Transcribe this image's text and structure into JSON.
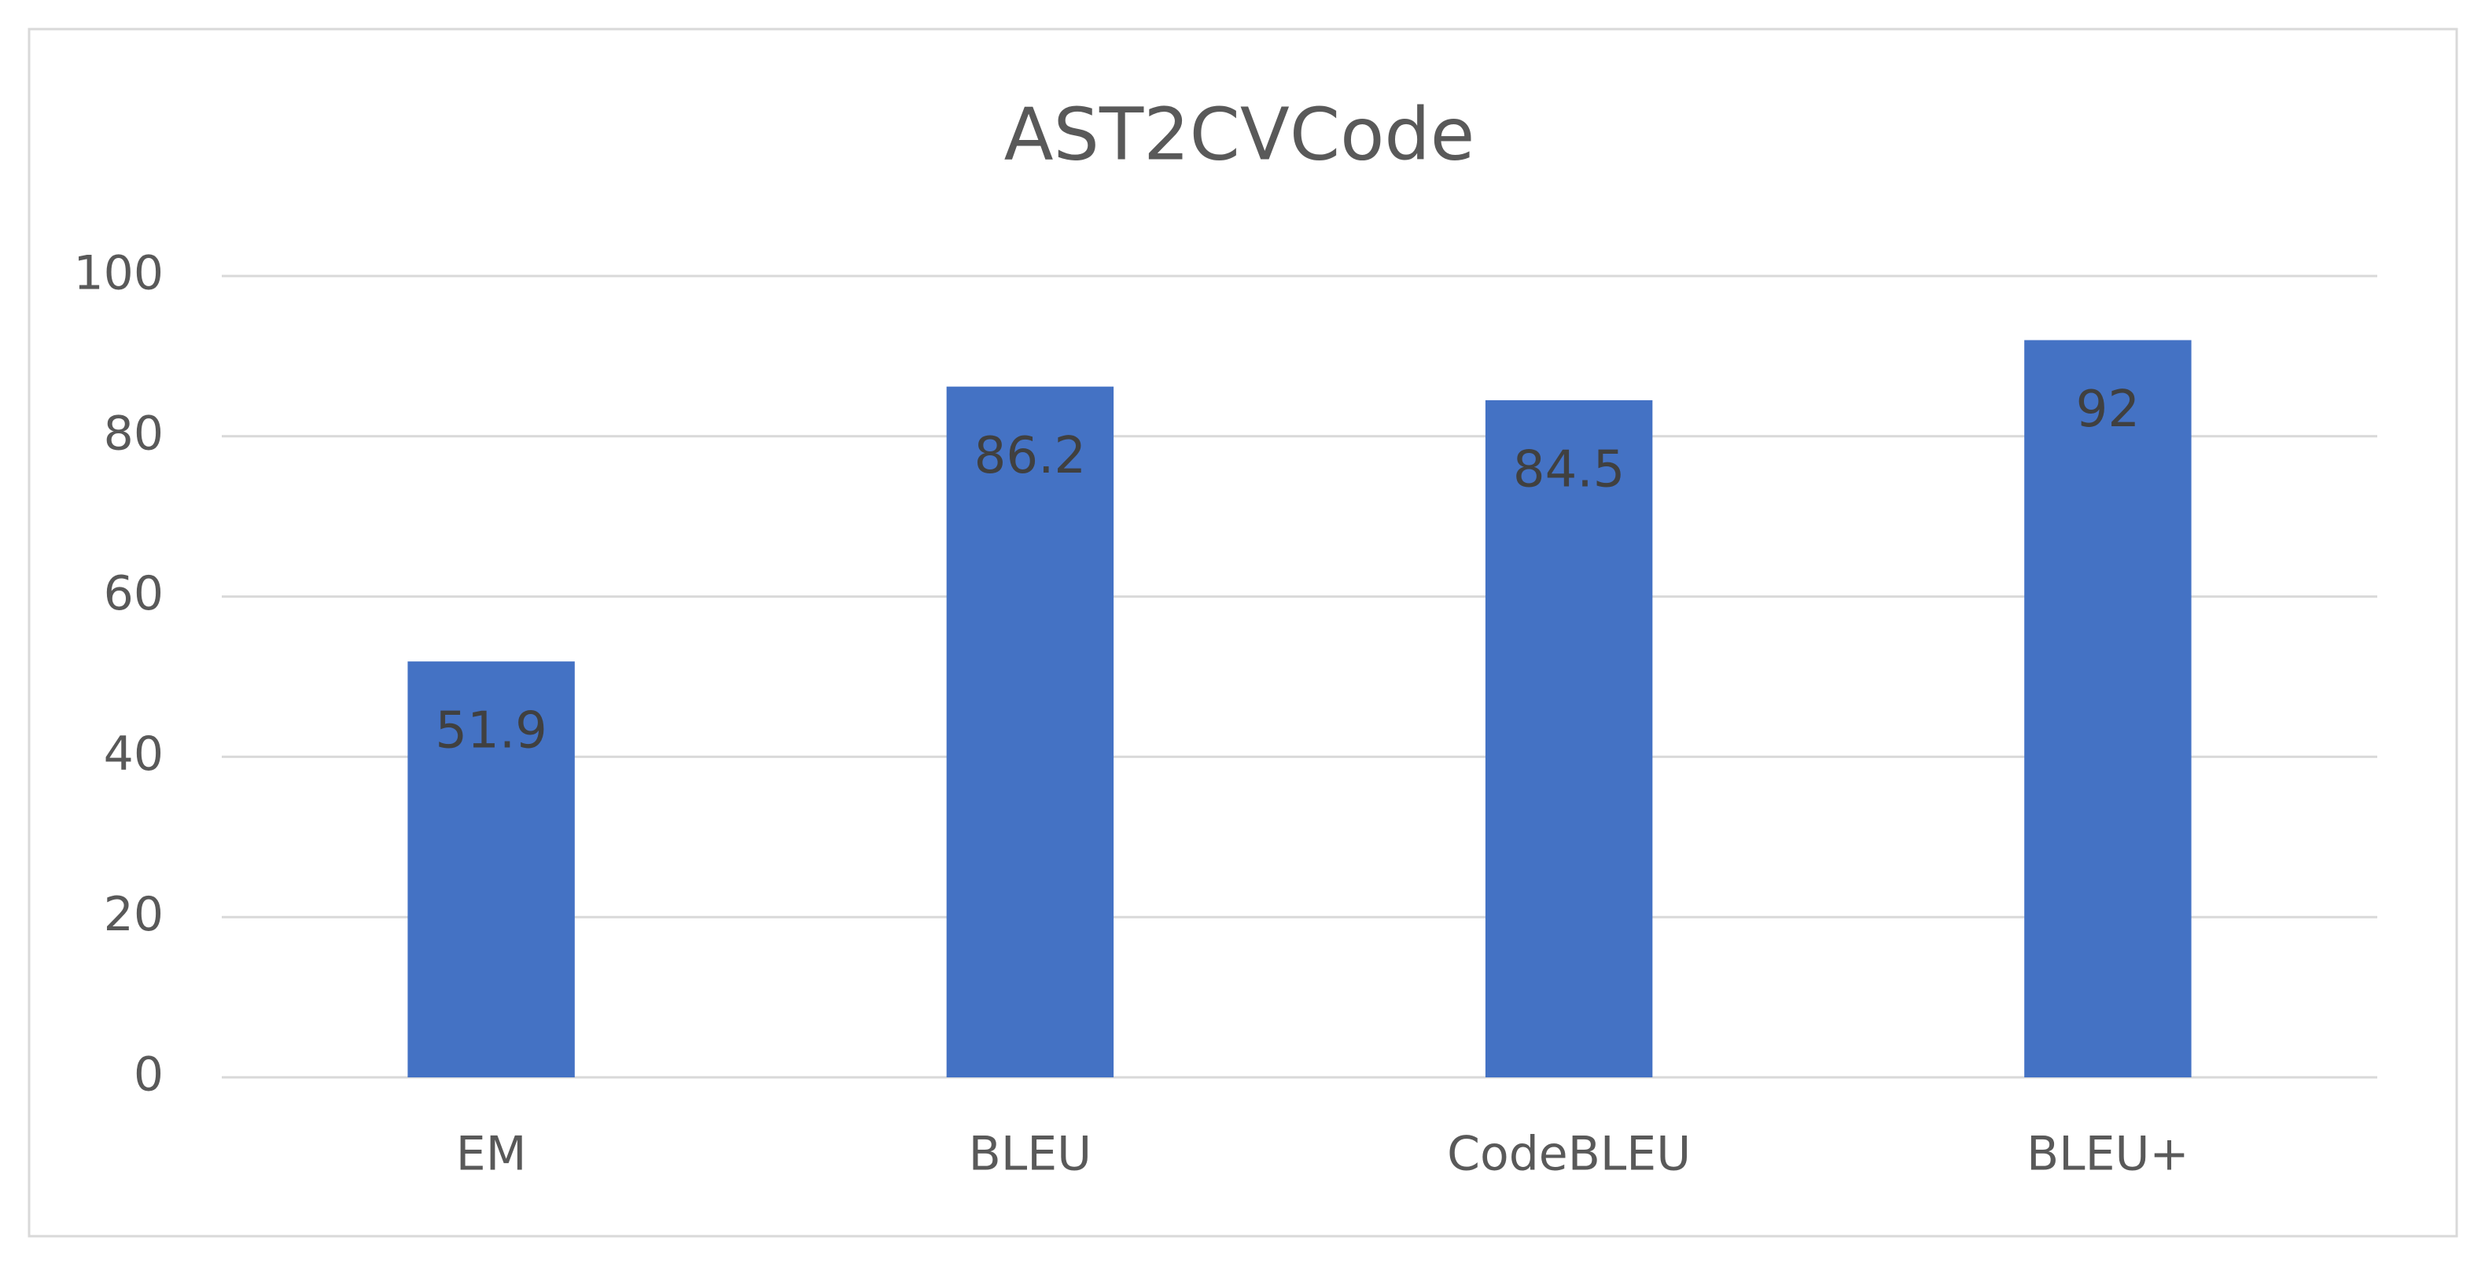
{
  "chart_data": {
    "type": "bar",
    "title": "AST2CVCode",
    "categories": [
      "EM",
      "BLEU",
      "CodeBLEU",
      "BLEU+"
    ],
    "values": [
      51.9,
      86.2,
      84.5,
      92
    ],
    "color": "#4472c4",
    "ylim": [
      0,
      100
    ],
    "yticks": [
      0,
      20,
      40,
      60,
      80,
      100
    ],
    "grid": true
  }
}
